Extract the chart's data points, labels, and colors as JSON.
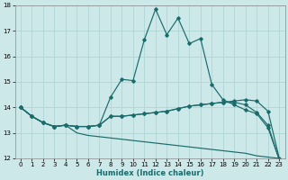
{
  "title": "",
  "xlabel": "Humidex (Indice chaleur)",
  "bg_color": "#cce8e8",
  "grid_color": "#b0d4d4",
  "line_color": "#1a6b6b",
  "xlim": [
    -0.5,
    23.5
  ],
  "ylim": [
    12,
    18
  ],
  "yticks": [
    12,
    13,
    14,
    15,
    16,
    17,
    18
  ],
  "xticks": [
    0,
    1,
    2,
    3,
    4,
    5,
    6,
    7,
    8,
    9,
    10,
    11,
    12,
    13,
    14,
    15,
    16,
    17,
    18,
    19,
    20,
    21,
    22,
    23
  ],
  "series": [
    [
      14.0,
      13.65,
      13.4,
      13.25,
      13.3,
      13.25,
      13.25,
      13.3,
      14.4,
      15.1,
      15.05,
      16.65,
      17.85,
      16.85,
      17.5,
      16.5,
      16.7,
      14.9,
      14.3,
      14.1,
      13.9,
      13.75,
      13.2,
      11.95
    ],
    [
      14.0,
      13.65,
      13.4,
      13.25,
      13.3,
      13.25,
      13.25,
      13.3,
      13.65,
      13.65,
      13.7,
      13.75,
      13.8,
      13.85,
      13.95,
      14.05,
      14.1,
      14.15,
      14.2,
      14.25,
      14.3,
      14.25,
      13.85,
      12.0
    ],
    [
      14.0,
      13.65,
      13.4,
      13.25,
      13.3,
      13.25,
      13.25,
      13.3,
      13.65,
      13.65,
      13.7,
      13.75,
      13.8,
      13.85,
      13.95,
      14.05,
      14.1,
      14.15,
      14.2,
      14.2,
      14.1,
      13.8,
      13.3,
      11.95
    ],
    [
      14.0,
      13.65,
      13.4,
      13.25,
      13.3,
      13.0,
      12.9,
      12.85,
      12.8,
      12.75,
      12.7,
      12.65,
      12.6,
      12.55,
      12.5,
      12.45,
      12.4,
      12.35,
      12.3,
      12.25,
      12.2,
      12.1,
      12.05,
      12.0
    ]
  ]
}
